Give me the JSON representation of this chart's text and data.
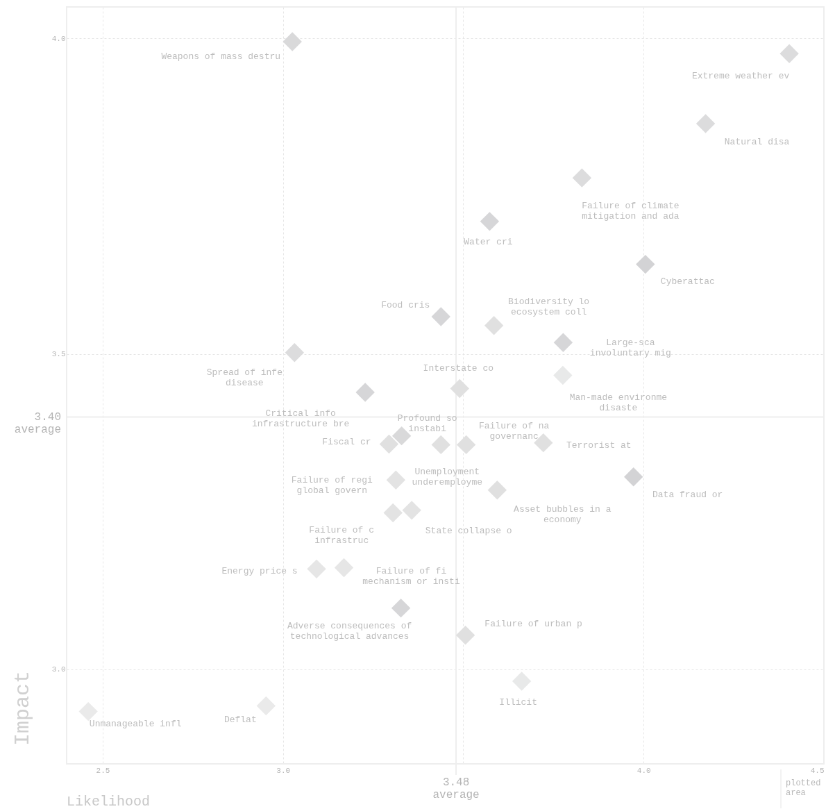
{
  "chart_data": {
    "type": "scatter",
    "xlabel": "Likelihood",
    "ylabel": "Impact",
    "xlim": [
      2.4,
      4.5
    ],
    "ylim": [
      2.85,
      4.05
    ],
    "xticks": [
      {
        "value": 2.5,
        "label": "2.5"
      },
      {
        "value": 3.0,
        "label": "3.0"
      },
      {
        "value": 3.5,
        "label": null
      },
      {
        "value": 4.0,
        "label": "4.0"
      },
      {
        "value": 4.5,
        "label": "4.5"
      }
    ],
    "yticks": [
      {
        "value": 3.0,
        "label": "3.0"
      },
      {
        "value": 3.5,
        "label": "3.5"
      },
      {
        "value": 4.0,
        "label": "4.0"
      }
    ],
    "grid": true,
    "marker": "diamond",
    "tick_labels": true,
    "series": [
      {
        "x": [
          3.026,
          4.404,
          4.172,
          3.829,
          3.573,
          4.005,
          3.438,
          3.585,
          3.777,
          3.032,
          3.49,
          3.776,
          3.228,
          3.329,
          3.294,
          3.438,
          3.508,
          3.722,
          3.313,
          3.972,
          3.594,
          3.305,
          3.357,
          3.093,
          3.169,
          3.327,
          3.506,
          3.662,
          2.46,
          2.953
        ],
        "values": [
          3.995,
          3.976,
          3.865,
          3.779,
          3.71,
          3.642,
          3.559,
          3.545,
          3.518,
          3.502,
          3.445,
          3.466,
          3.439,
          3.37,
          3.357,
          3.356,
          3.356,
          3.359,
          3.3,
          3.305,
          3.284,
          3.248,
          3.252,
          3.159,
          3.161,
          3.097,
          3.054,
          2.981,
          2.933,
          2.942
        ],
        "colors": [
          "#d9d9da",
          "#dcdcdd",
          "#dcdcdd",
          "#dcdcdd",
          "#d6d6d8",
          "#d3d3d5",
          "#d6d6d8",
          "#e0e0e0",
          "#d6d6d8",
          "#dcdcdd",
          "#e0e0e0",
          "#e8e9e9",
          "#d6d6d8",
          "#d9d9da",
          "#e0e0e0",
          "#e0e0e0",
          "#e0e0e0",
          "#e0e0e0",
          "#e3e3e3",
          "#d3d3d5",
          "#e0e0e0",
          "#e3e3e3",
          "#e3e3e3",
          "#e6e6e6",
          "#e6e6e6",
          "#d6d6d8",
          "#e0e0e0",
          "#e8e9e9",
          "#eaeaea",
          "#eaeaea"
        ]
      }
    ],
    "ref_lines": [
      {
        "axis": "y",
        "value": 3.4,
        "label": "3.40\naverage",
        "color": "#eeeeee"
      },
      {
        "axis": "x",
        "value": 3.48,
        "label": "3.48\naverage",
        "color": "#eeeeee"
      }
    ],
    "annotations": [
      {
        "text": "Weapons of mass destru",
        "x": 3.026,
        "y": 3.995
      },
      {
        "text": "Extreme weather ev",
        "x": 4.404,
        "y": 3.976
      },
      {
        "text": "Natural disa",
        "x": 4.172,
        "y": 3.865
      },
      {
        "text": "Failure of climate\nmitigation and ada",
        "x": 3.829,
        "y": 3.779
      },
      {
        "text": "Water cri",
        "x": 3.573,
        "y": 3.71
      },
      {
        "text": "Cyberattac",
        "x": 4.005,
        "y": 3.642
      },
      {
        "text": "Food cris",
        "x": 3.438,
        "y": 3.559
      },
      {
        "text": "Biodiversity lo\necosystem coll",
        "x": 3.585,
        "y": 3.545
      },
      {
        "text": "Large-sca\ninvoluntary mig",
        "x": 3.777,
        "y": 3.518
      },
      {
        "text": "Spread of infe\ndisease",
        "x": 3.032,
        "y": 3.502
      },
      {
        "text": "Interstate co",
        "x": 3.49,
        "y": 3.445
      },
      {
        "text": "Man-made environme\ndisaste",
        "x": 3.776,
        "y": 3.466
      },
      {
        "text": "Critical info\ninfrastructure bre",
        "x": 3.228,
        "y": 3.439
      },
      {
        "text": "Profound so\ninstabi",
        "x": 3.329,
        "y": 3.37
      },
      {
        "text": "Fiscal cr",
        "x": 3.294,
        "y": 3.357
      },
      {
        "text": "Unemployment\nunderemployme",
        "x": 3.438,
        "y": 3.356
      },
      {
        "text": "Failure of na\ngovernanc",
        "x": 3.508,
        "y": 3.356
      },
      {
        "text": "Terrorist at",
        "x": 3.722,
        "y": 3.359
      },
      {
        "text": "Failure of regi\nglobal govern",
        "x": 3.313,
        "y": 3.3
      },
      {
        "text": "Data fraud or",
        "x": 3.972,
        "y": 3.305
      },
      {
        "text": "Asset bubbles in a\neconomy",
        "x": 3.594,
        "y": 3.284
      },
      {
        "text": "Failure of c\ninfrastruc",
        "x": 3.305,
        "y": 3.248
      },
      {
        "text": "State collapse o",
        "x": 3.357,
        "y": 3.252
      },
      {
        "text": "Energy price s",
        "x": 3.093,
        "y": 3.159
      },
      {
        "text": "Failure of fi\nmechanism or insti",
        "x": 3.169,
        "y": 3.161
      },
      {
        "text": "Adverse consequences of\ntechnological advances",
        "x": 3.327,
        "y": 3.097
      },
      {
        "text": "Failure of urban p",
        "x": 3.506,
        "y": 3.054
      },
      {
        "text": "Illicit",
        "x": 3.662,
        "y": 2.981
      },
      {
        "text": "Unmanageable infl",
        "x": 2.46,
        "y": 2.933
      },
      {
        "text": "Deflat",
        "x": 2.953,
        "y": 2.942
      },
      "plotted\narea"
    ]
  }
}
